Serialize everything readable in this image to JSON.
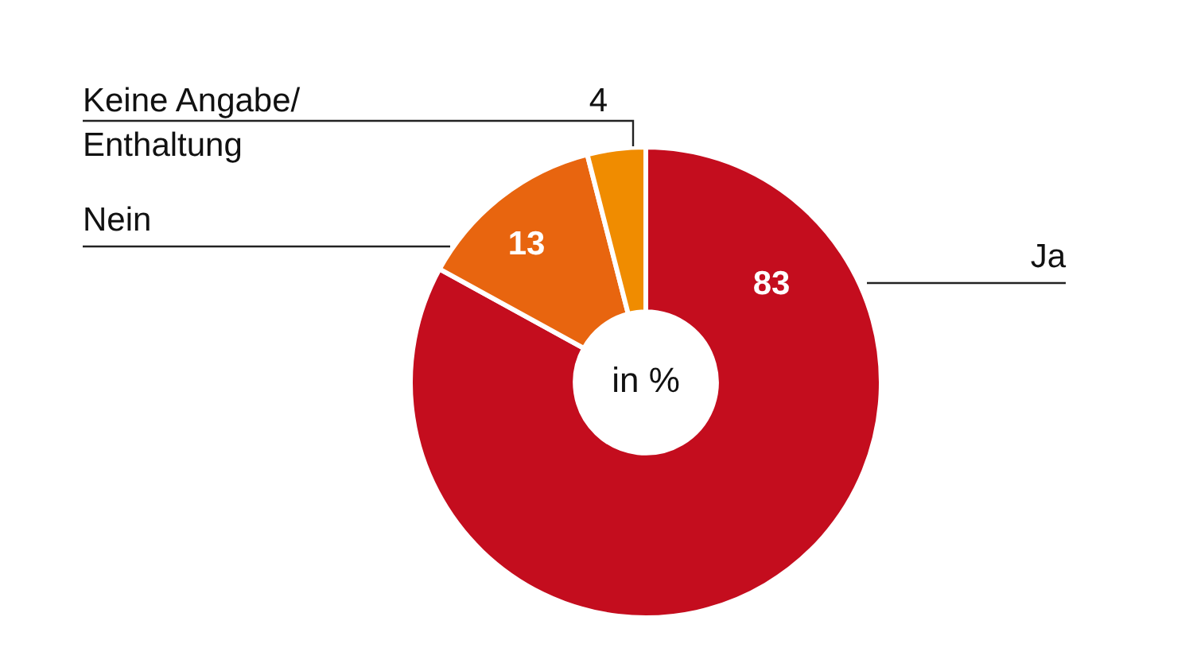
{
  "chart_data": {
    "type": "donut",
    "categories": [
      "Ja",
      "Nein",
      "Keine Angabe/Enthaltung"
    ],
    "values": [
      83,
      13,
      4
    ],
    "colors": [
      "#c40d1e",
      "#e8650f",
      "#f08c00"
    ],
    "data_labels": true,
    "legend": false,
    "annotations": [
      "in %"
    ]
  }
}
